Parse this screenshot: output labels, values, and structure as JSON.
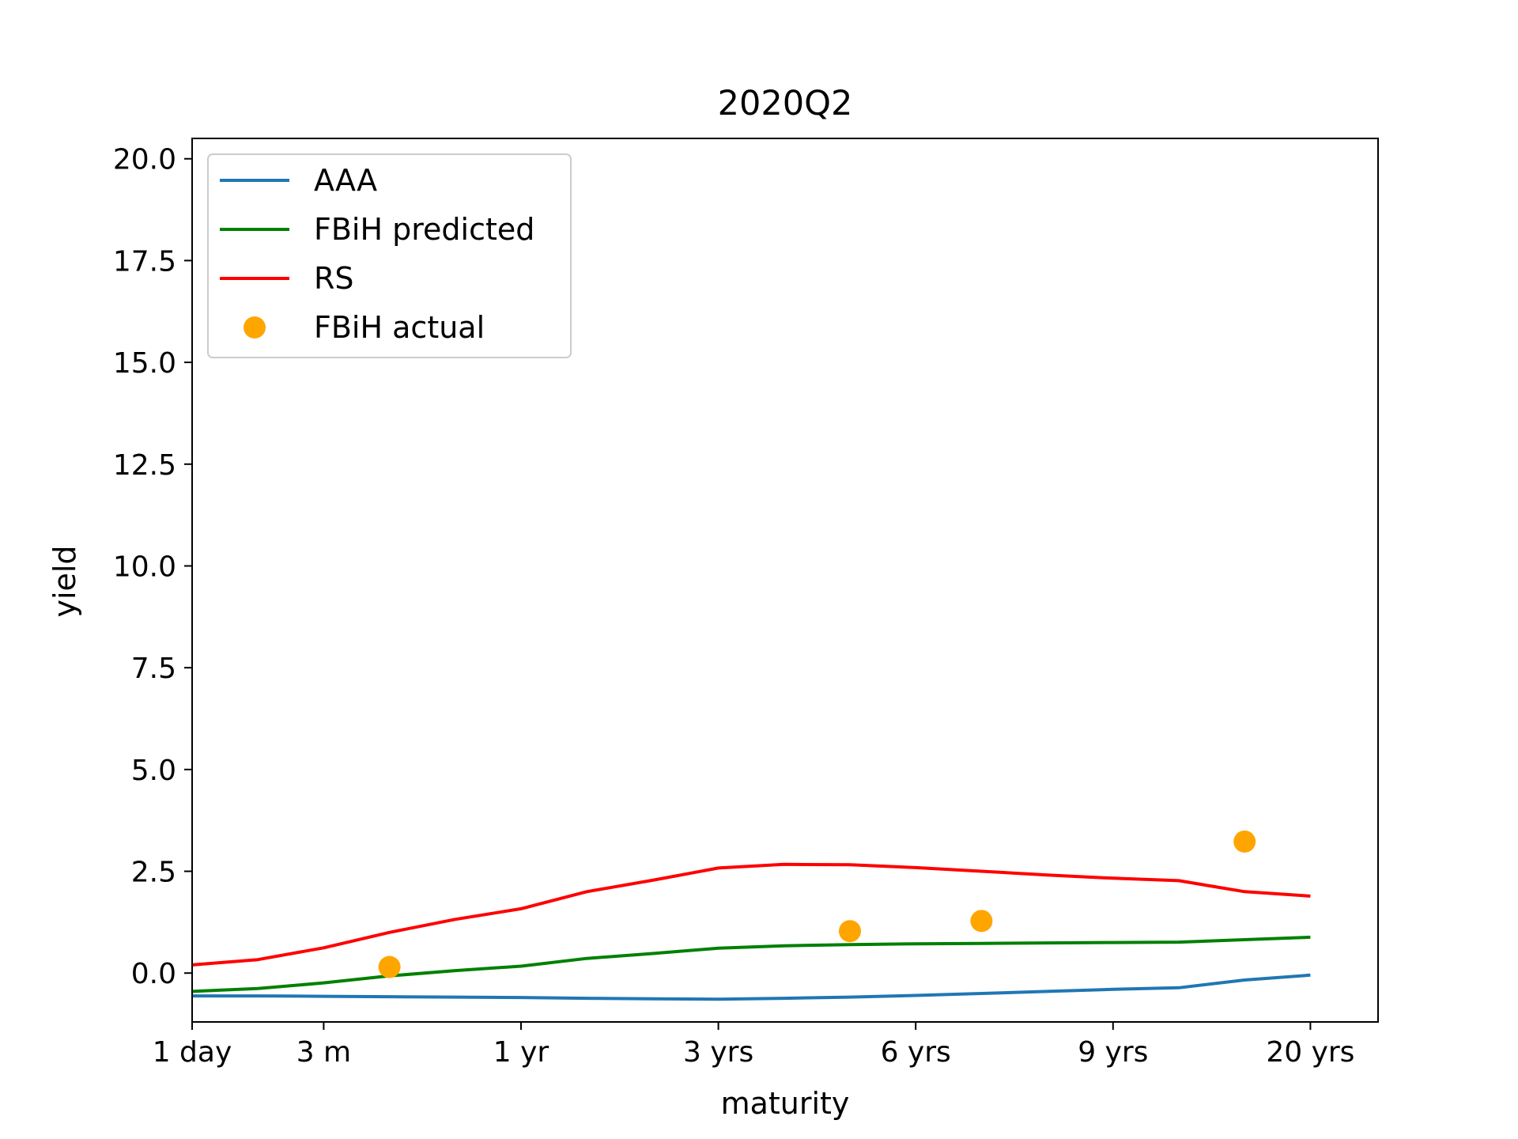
{
  "chart_data": {
    "type": "line",
    "title": "2020Q2",
    "xlabel": "maturity",
    "ylabel": "yield",
    "x_ticks": [
      "1 day",
      "3 m",
      "1 yr",
      "3 yrs",
      "6 yrs",
      "9 yrs",
      "20 yrs"
    ],
    "y_ticks": [
      "0.0",
      "2.5",
      "5.0",
      "7.5",
      "10.0",
      "12.5",
      "15.0",
      "17.5",
      "20.0"
    ],
    "ylim": [
      -1.2,
      20.5
    ],
    "grid": false,
    "legend_position": "top-left",
    "series": [
      {
        "name": "AAA",
        "kind": "line",
        "color": "#1f77b4",
        "x": [
          1,
          2,
          3,
          4,
          5,
          6,
          7,
          8,
          9,
          10,
          11,
          12,
          13,
          14,
          15,
          16,
          17,
          18
        ],
        "y": [
          -0.56,
          -0.56,
          -0.57,
          -0.58,
          -0.59,
          -0.6,
          -0.62,
          -0.63,
          -0.64,
          -0.62,
          -0.59,
          -0.55,
          -0.5,
          -0.45,
          -0.4,
          -0.36,
          -0.17,
          -0.05
        ]
      },
      {
        "name": "FBiH predicted",
        "kind": "line",
        "color": "#008000",
        "x": [
          1,
          2,
          3,
          4,
          5,
          6,
          7,
          8,
          9,
          10,
          11,
          12,
          13,
          14,
          15,
          16,
          17,
          18
        ],
        "y": [
          -0.45,
          -0.38,
          -0.24,
          -0.07,
          0.06,
          0.17,
          0.36,
          0.48,
          0.61,
          0.67,
          0.7,
          0.72,
          0.73,
          0.74,
          0.75,
          0.76,
          0.82,
          0.88
        ]
      },
      {
        "name": "RS",
        "kind": "line",
        "color": "#ff0000",
        "x": [
          1,
          2,
          3,
          4,
          5,
          6,
          7,
          8,
          9,
          10,
          11,
          12,
          13,
          14,
          15,
          16,
          17,
          18
        ],
        "y": [
          0.2,
          0.33,
          0.62,
          1.0,
          1.32,
          1.58,
          2.0,
          2.28,
          2.58,
          2.67,
          2.66,
          2.59,
          2.5,
          2.41,
          2.33,
          2.27,
          2.0,
          1.89
        ]
      },
      {
        "name": "FBiH actual",
        "kind": "scatter",
        "color": "#ffa500",
        "x": [
          4,
          11,
          13,
          17
        ],
        "y": [
          0.15,
          1.03,
          1.28,
          3.23
        ]
      }
    ]
  }
}
